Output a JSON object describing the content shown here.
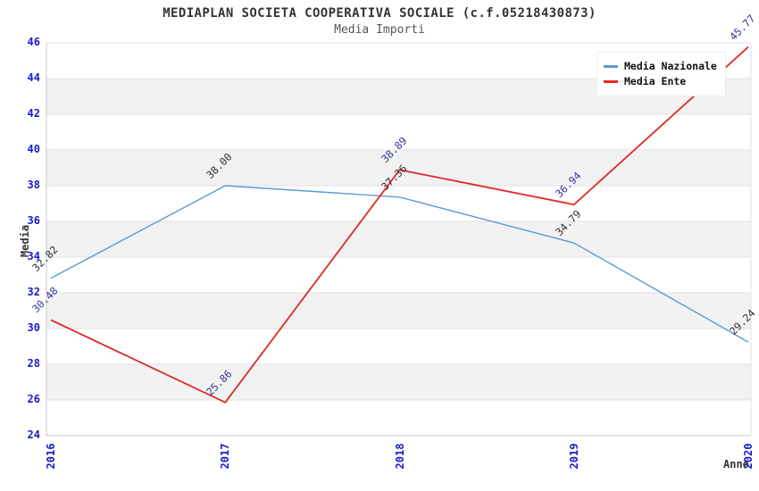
{
  "chart": {
    "title": "MEDIAPLAN SOCIETA COOPERATIVA SOCIALE (c.f.05218430873)",
    "subtitle": "Media Importi",
    "ylabel": "Media",
    "xlabel": "Anno"
  },
  "colors": {
    "nazionale_line": "#5b9bd5",
    "ente_line": "#e22828",
    "tick_label_blue": "#1a1acc",
    "nazionale_point_label": "#2e2e2e",
    "ente_point_label": "#333399",
    "band_gray": "#f2f2f2",
    "band_white": "#ffffff",
    "gridline": "#e2e2e2",
    "spine": "#c9c9c9",
    "title_text": "#333333",
    "subtitle_text": "#555555"
  },
  "legend": {
    "items": [
      {
        "label": "Media Nazionale",
        "color": "#5b9bd5"
      },
      {
        "label": "Media Ente",
        "color": "#e22828"
      }
    ]
  },
  "chart_data": {
    "type": "line",
    "title": "MEDIAPLAN SOCIETA COOPERATIVA SOCIALE (c.f.05218430873)",
    "subtitle": "Media Importi",
    "xlabel": "Anno",
    "ylabel": "Media",
    "x": [
      2016,
      2017,
      2018,
      2019,
      2020
    ],
    "series": [
      {
        "name": "Media Nazionale",
        "color": "#5b9bd5",
        "label_color": "#2e2e2e",
        "values": [
          32.82,
          38.0,
          37.36,
          34.79,
          29.24
        ]
      },
      {
        "name": "Media Ente",
        "color": "#e22828",
        "label_color": "#333399",
        "values": [
          30.48,
          25.86,
          38.89,
          36.94,
          45.77
        ]
      }
    ],
    "ylim": [
      24,
      46
    ],
    "ytick_step": 2,
    "grid": "horizontal-alternating-bands",
    "legend_position": "top-right",
    "point_labels_rotated_45": true
  }
}
